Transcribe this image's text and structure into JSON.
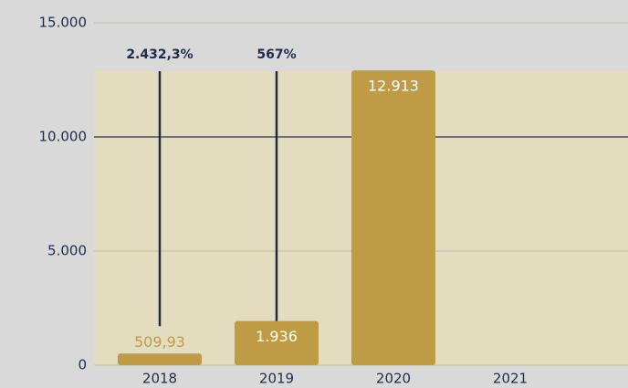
{
  "chart_data": {
    "type": "bar",
    "categories": [
      "2018",
      "2019",
      "2020",
      "2021"
    ],
    "values": [
      509.93,
      1936,
      12913,
      null
    ],
    "value_labels": [
      "509,93",
      "1.936",
      "12.913",
      null
    ],
    "annotations": [
      "2.432,3%",
      "567%"
    ],
    "color": "#bf9b45",
    "ylim": [
      0,
      15000
    ],
    "yticks": [
      0,
      {
        "value": 5000,
        "label": "5.000"
      },
      {
        "value": 10000,
        "label": "10.000"
      },
      {
        "value": 15000,
        "label": "15.000"
      }
    ],
    "grid": true
  }
}
